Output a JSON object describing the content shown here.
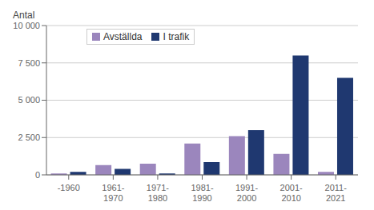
{
  "chart_data": {
    "type": "bar",
    "ylabel": "Antal",
    "categories": [
      "-1960",
      "1961-\n1970",
      "1971-\n1980",
      "1981-\n1990",
      "1991-\n2000",
      "2001-\n2010",
      "2011-\n2021"
    ],
    "series": [
      {
        "name": "Avställda",
        "color": "#9b86bd",
        "values": [
          100,
          650,
          750,
          2100,
          2600,
          1400,
          200
        ]
      },
      {
        "name": "I trafik",
        "color": "#1f3870",
        "values": [
          200,
          400,
          100,
          850,
          3000,
          8000,
          6500
        ]
      }
    ],
    "ylim": [
      0,
      10000
    ],
    "yticks": [
      0,
      {
        "value": 2500,
        "label": "2 500"
      },
      {
        "value": 5000,
        "label": "5 000"
      },
      {
        "value": 7500,
        "label": "7 500"
      },
      {
        "value": 10000,
        "label": "10 000"
      }
    ],
    "grid": true,
    "legend": "upper left"
  }
}
